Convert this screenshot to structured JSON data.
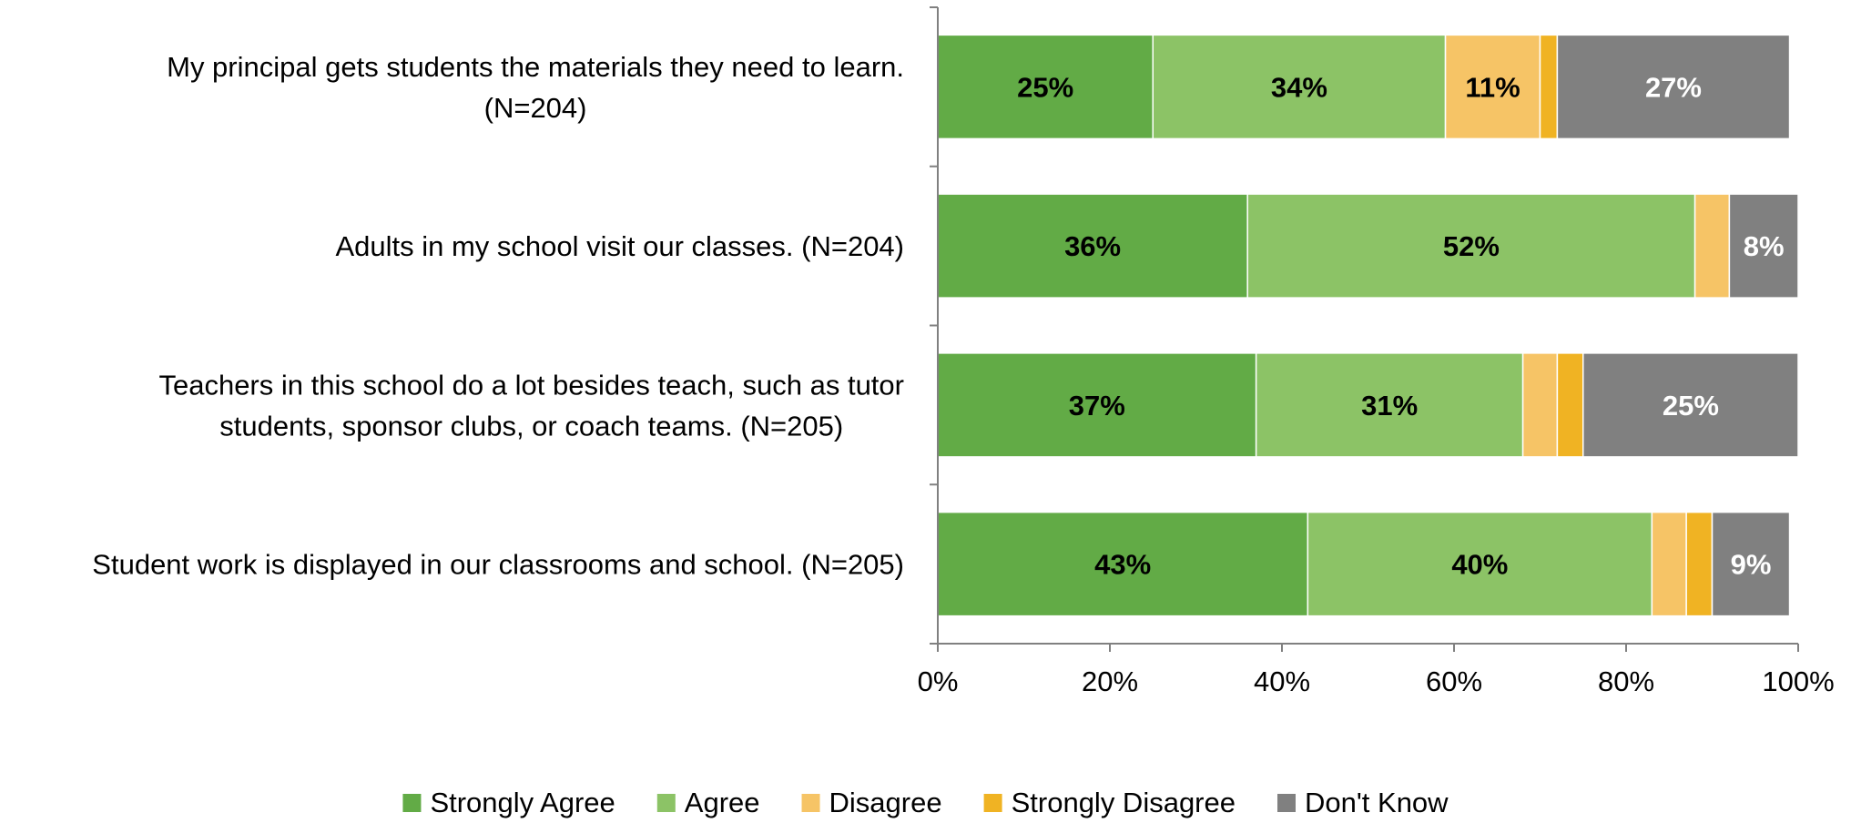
{
  "chart_data": {
    "type": "bar",
    "orientation": "horizontal",
    "stacked": true,
    "categories": [
      [
        "My principal gets students the materials they need to learn.",
        "(N=204)"
      ],
      [
        "Adults in my school visit our classes. (N=204)"
      ],
      [
        "Teachers in this school do a lot besides teach, such as tutor",
        "students, sponsor clubs, or coach teams. (N=205)"
      ],
      [
        "Student work is displayed in our classrooms and school. (N=205)"
      ]
    ],
    "series": [
      {
        "name": "Strongly Agree",
        "color": "#62AB46",
        "label_color": "#000000",
        "values": [
          25,
          36,
          37,
          43
        ],
        "labels": [
          "25%",
          "36%",
          "37%",
          "43%"
        ]
      },
      {
        "name": "Agree",
        "color": "#8CC366",
        "label_color": "#000000",
        "values": [
          34,
          52,
          31,
          40
        ],
        "labels": [
          "34%",
          "52%",
          "31%",
          "40%"
        ]
      },
      {
        "name": "Disagree",
        "color": "#F6C466",
        "label_color": "#000000",
        "values": [
          11,
          4,
          4,
          4
        ],
        "labels": [
          "11%",
          "",
          "",
          ""
        ]
      },
      {
        "name": "Strongly Disagree",
        "color": "#F0B323",
        "label_color": "#000000",
        "values": [
          2,
          0,
          3,
          3
        ],
        "labels": [
          "",
          "",
          "",
          ""
        ]
      },
      {
        "name": "Don't Know",
        "color": "#808080",
        "label_color": "#ffffff",
        "values": [
          27,
          8,
          25,
          9
        ],
        "labels": [
          "27%",
          "8%",
          "25%",
          "9%"
        ]
      }
    ],
    "x_ticks": [
      "0%",
      "20%",
      "40%",
      "60%",
      "80%",
      "100%"
    ],
    "xlim": [
      0,
      100
    ],
    "grid": false,
    "legend_position": "bottom"
  }
}
